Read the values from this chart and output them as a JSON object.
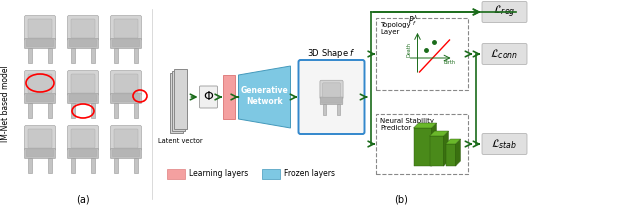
{
  "fig_width": 6.4,
  "fig_height": 2.09,
  "dpi": 100,
  "bg_color": "#ffffff",
  "dark_green": "#1a6b1a",
  "learning_color": "#f4a0a0",
  "learning_edge": "#e08080",
  "frozen_color": "#7ec8e3",
  "frozen_edge": "#4499bb",
  "loss_bg": "#e0e0e0",
  "gray_rect": "#b0b0b0",
  "gray_edge": "#888888",
  "dashed_color": "#888888",
  "shape_edge": "#3388cc",
  "latent_label": "Latent vector",
  "gen_label": "Generative\nNetwork",
  "shape_label": "3D Shape ",
  "topo_label": "Topology\nLayer",
  "nsp_label": "Neural Stability\nPredictor",
  "legend_learn": "Learning layers",
  "legend_frozen": "Frozen layers",
  "label_a": "(a)",
  "label_b": "(b)",
  "imnets_label": "IM-Net based model",
  "birth_label": "Birth",
  "death_label": "Death"
}
